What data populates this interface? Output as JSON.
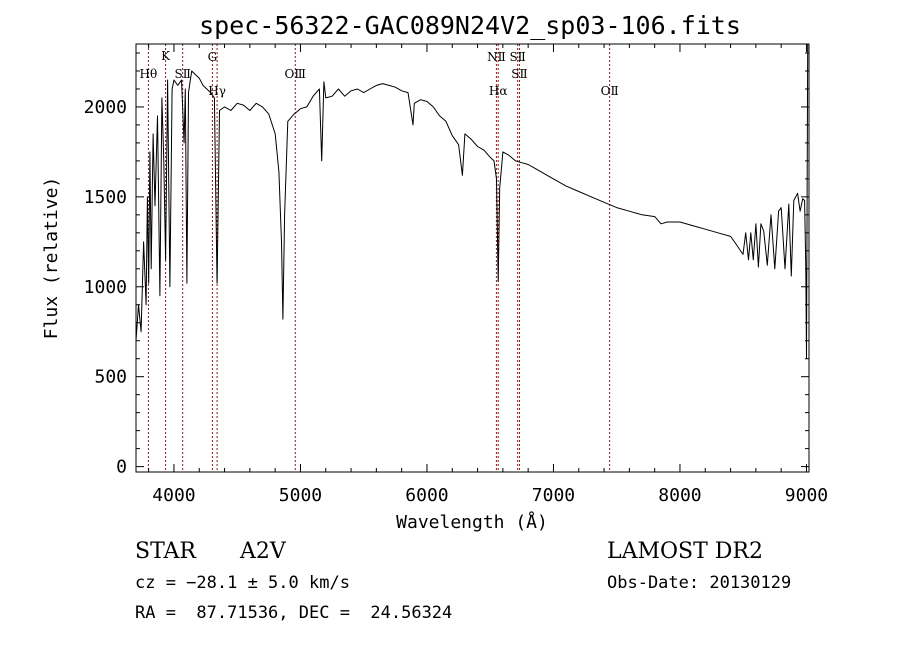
{
  "chart_data": {
    "type": "line",
    "title": "spec-56322-GAC089N24V2_sp03-106.fits",
    "xlabel": "Wavelength (Å)",
    "ylabel": "Flux (relative)",
    "xlim": [
      3700,
      9020
    ],
    "ylim": [
      -30,
      2350
    ],
    "x_ticks": [
      4000,
      5000,
      6000,
      7000,
      8000,
      9000
    ],
    "y_ticks": [
      0,
      500,
      1000,
      1500,
      2000
    ],
    "grid": false,
    "spectral_lines": [
      {
        "name": "Hθ",
        "x": 3798,
        "row": 2
      },
      {
        "name": "K",
        "x": 3934,
        "row": 0
      },
      {
        "name": "SⅡ",
        "x": 4069,
        "row": 2
      },
      {
        "name": "G",
        "x": 4304,
        "row": 1
      },
      {
        "name": "Hγ",
        "x": 4341,
        "row": 3
      },
      {
        "name": "OⅢ",
        "x": 4959,
        "row": 2
      },
      {
        "name": "NⅡ",
        "x": 6549,
        "row": 1
      },
      {
        "name": "Hα",
        "x": 6563,
        "row": 3
      },
      {
        "name": "SⅡ",
        "x": 6717,
        "row": 1
      },
      {
        "name": "SⅡ",
        "x": 6731,
        "row": 2
      },
      {
        "name": "OⅡ",
        "x": 7444,
        "row": 3
      }
    ],
    "series": [
      {
        "x": [
          3700,
          3720,
          3740,
          3760,
          3780,
          3790,
          3800,
          3810,
          3820,
          3835,
          3850,
          3870,
          3889,
          3905,
          3920,
          3934,
          3950,
          3968,
          3985,
          4000,
          4030,
          4060,
          4080,
          4090,
          4102,
          4115,
          4140,
          4170,
          4200,
          4230,
          4260,
          4290,
          4320,
          4340,
          4341,
          4360,
          4400,
          4450,
          4500,
          4550,
          4600,
          4650,
          4700,
          4750,
          4800,
          4830,
          4850,
          4861,
          4875,
          4900,
          4950,
          5000,
          5050,
          5100,
          5150,
          5168,
          5185,
          5200,
          5250,
          5300,
          5350,
          5400,
          5450,
          5500,
          5550,
          5600,
          5650,
          5700,
          5750,
          5800,
          5850,
          5890,
          5900,
          5950,
          6000,
          6050,
          6100,
          6150,
          6200,
          6250,
          6280,
          6300,
          6350,
          6400,
          6450,
          6500,
          6530,
          6550,
          6563,
          6575,
          6600,
          6650,
          6700,
          6750,
          6800,
          6850,
          6900,
          6950,
          7000,
          7100,
          7200,
          7300,
          7400,
          7500,
          7600,
          7700,
          7800,
          7850,
          7900,
          8000,
          8100,
          8200,
          8300,
          8400,
          8450,
          8498,
          8520,
          8542,
          8560,
          8580,
          8600,
          8620,
          8640,
          8662,
          8690,
          8720,
          8750,
          8780,
          8800,
          8830,
          8860,
          8880,
          8900,
          8930,
          8950,
          8970,
          8985,
          8995,
          9000,
          9010
        ],
        "values": [
          700,
          900,
          750,
          1250,
          900,
          1500,
          1020,
          1750,
          1100,
          1850,
          1450,
          1950,
          950,
          2050,
          1700,
          1150,
          2150,
          1000,
          2100,
          2150,
          2120,
          2150,
          1800,
          2100,
          1020,
          2080,
          2200,
          2180,
          2160,
          2120,
          2100,
          2080,
          2050,
          1030,
          1020,
          1980,
          2000,
          1980,
          2020,
          2010,
          1980,
          2020,
          2000,
          1960,
          1850,
          1640,
          1250,
          820,
          1400,
          1920,
          1960,
          1990,
          2000,
          2060,
          2100,
          1700,
          2140,
          2050,
          2060,
          2100,
          2060,
          2090,
          2100,
          2080,
          2100,
          2120,
          2130,
          2120,
          2110,
          2090,
          2080,
          1900,
          2020,
          2040,
          2030,
          2000,
          1950,
          1920,
          1840,
          1790,
          1620,
          1850,
          1820,
          1780,
          1760,
          1720,
          1700,
          1600,
          1030,
          1550,
          1750,
          1730,
          1700,
          1690,
          1680,
          1660,
          1640,
          1620,
          1600,
          1560,
          1530,
          1500,
          1470,
          1440,
          1420,
          1400,
          1390,
          1350,
          1360,
          1360,
          1340,
          1320,
          1300,
          1280,
          1230,
          1180,
          1300,
          1150,
          1300,
          1150,
          1350,
          1110,
          1350,
          1310,
          1120,
          1400,
          1100,
          1420,
          1440,
          1100,
          1460,
          1060,
          1480,
          1520,
          1420,
          1490,
          1480,
          1100,
          600,
          2350
        ]
      }
    ]
  },
  "info": {
    "object_class": "STAR",
    "subclass": "A2V",
    "survey": "LAMOST DR2",
    "cz": "cz = −28.1 ± 5.0 km/s",
    "obs_date": "Obs-Date: 20130129",
    "coords": "RA =  87.71536, DEC =  24.56324"
  },
  "colors": {
    "spectrum": "#000000",
    "line_markers": "#8b1a1a",
    "background": "#ffffff"
  }
}
